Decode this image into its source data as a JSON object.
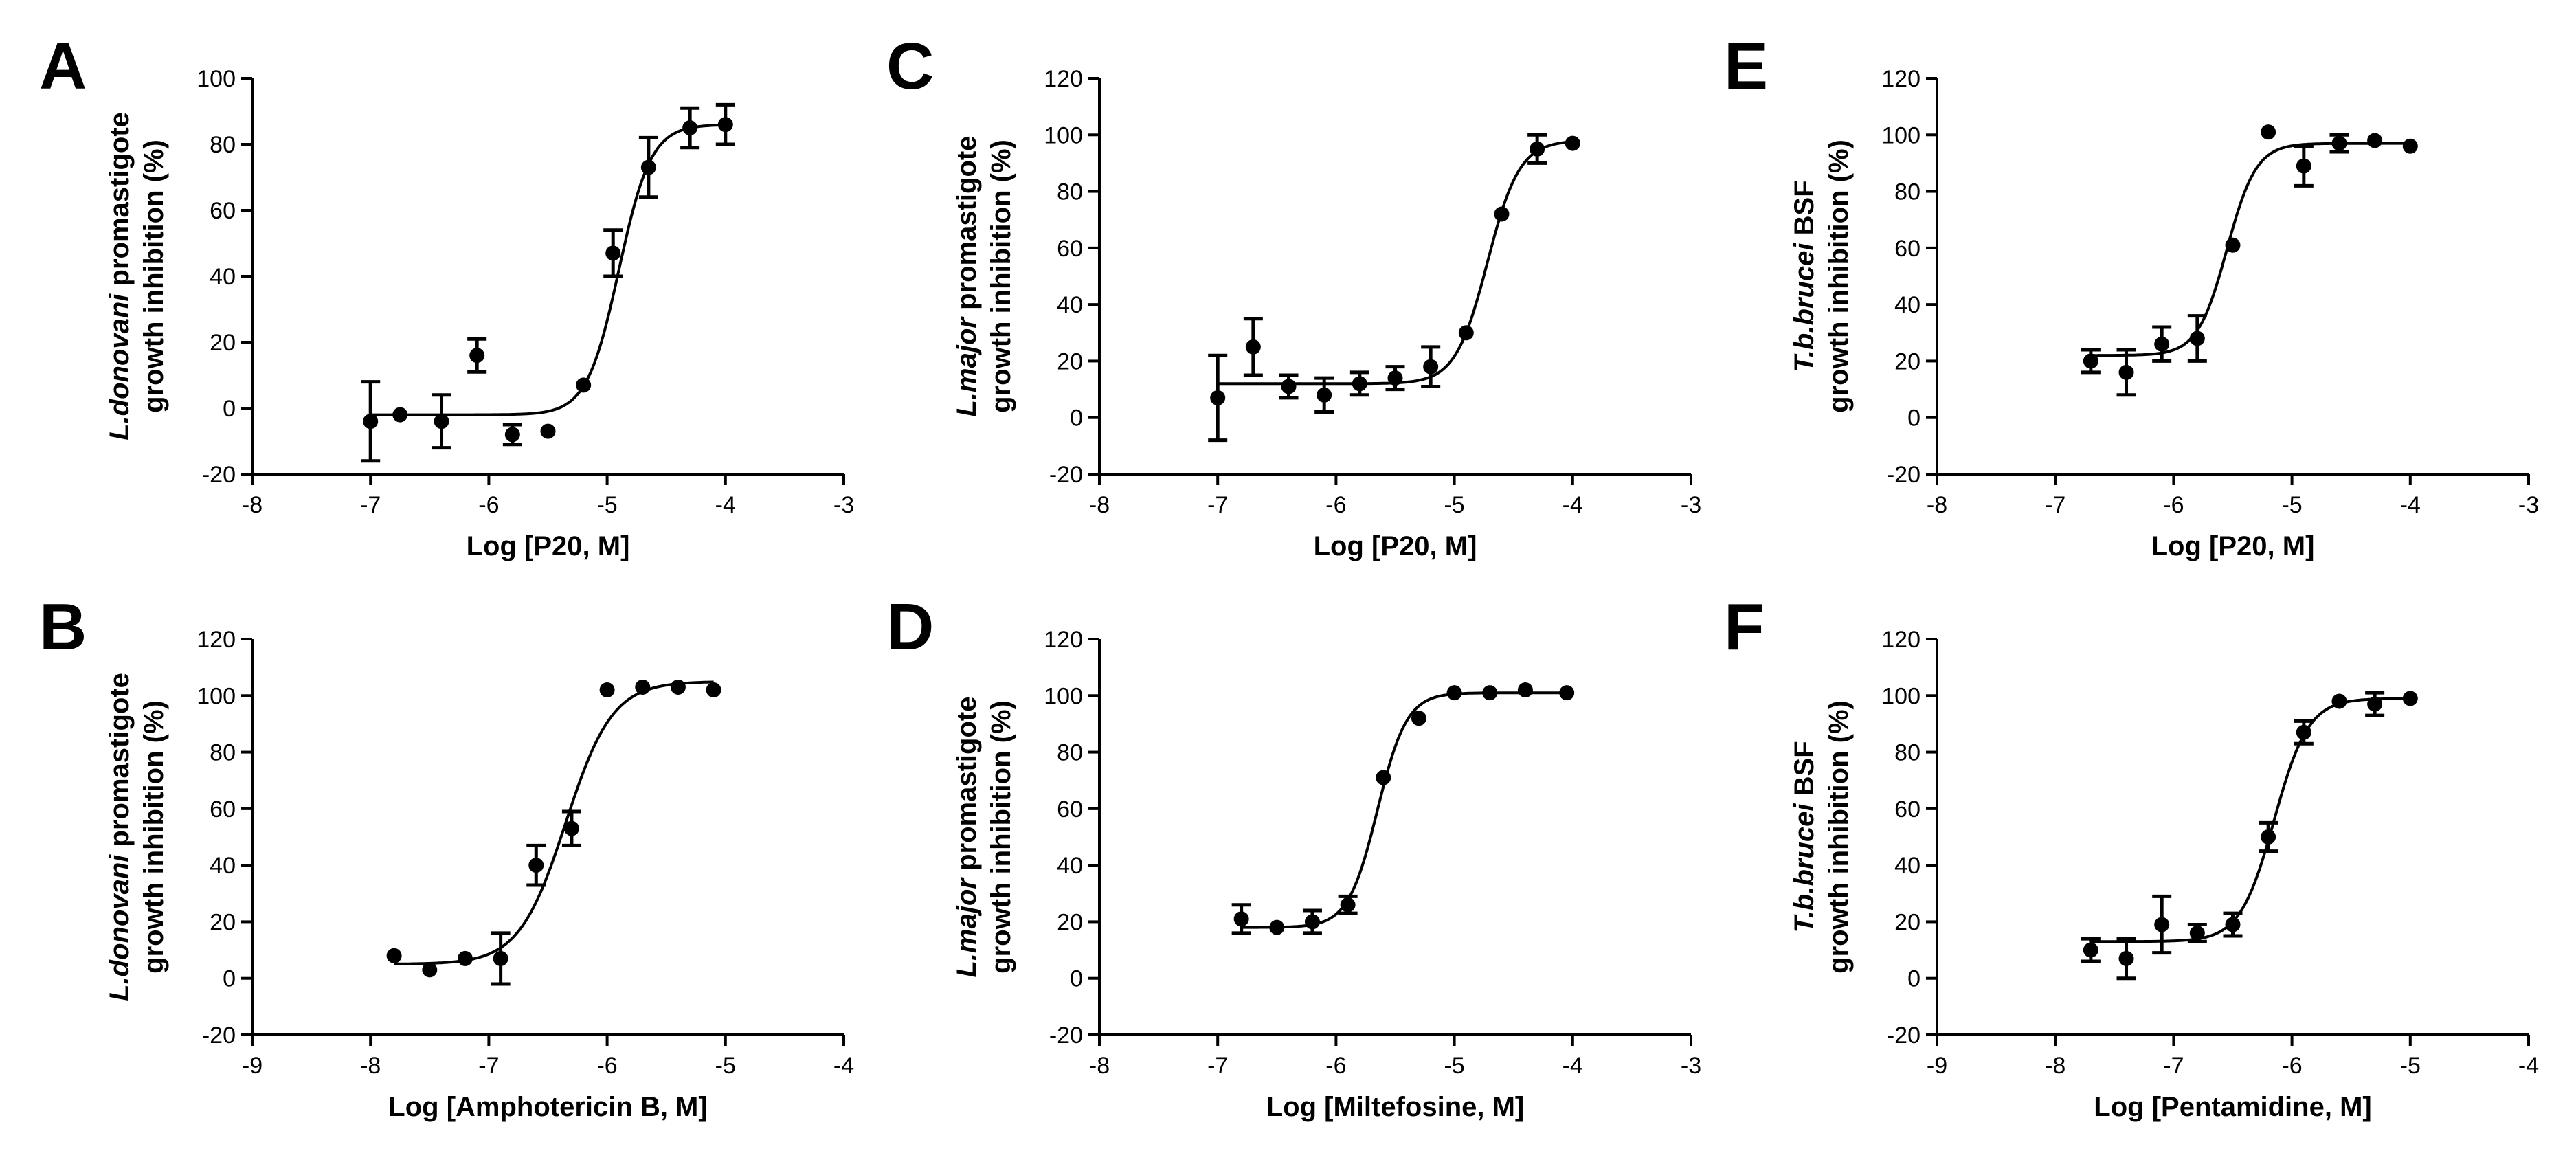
{
  "chart_data": [
    {
      "panel": "A",
      "type": "scatter",
      "ylabel_italic": "L.donovani",
      "ylabel_rest": " promastigote",
      "ylabel_line2": "growth inhibition (%)",
      "xlabel": "Log [P20, M]",
      "xlim": [
        -8,
        -3
      ],
      "ylim": [
        -20,
        100
      ],
      "xticks": [
        -8,
        -7,
        -6,
        -5,
        -4,
        -3
      ],
      "yticks": [
        -20,
        0,
        20,
        40,
        60,
        80,
        100
      ],
      "points": [
        {
          "x": -7.0,
          "y": -4,
          "err": 12
        },
        {
          "x": -6.75,
          "y": -2,
          "err": 0
        },
        {
          "x": -6.4,
          "y": -4,
          "err": 8
        },
        {
          "x": -6.1,
          "y": 16,
          "err": 5
        },
        {
          "x": -5.8,
          "y": -8,
          "err": 3
        },
        {
          "x": -5.5,
          "y": -7,
          "err": 0
        },
        {
          "x": -5.2,
          "y": 7,
          "err": 0
        },
        {
          "x": -4.95,
          "y": 47,
          "err": 7
        },
        {
          "x": -4.65,
          "y": 73,
          "err": 9
        },
        {
          "x": -4.3,
          "y": 85,
          "err": 6
        },
        {
          "x": -4.0,
          "y": 86,
          "err": 6
        }
      ],
      "fit": {
        "bottom": -2,
        "top": 86,
        "logec50": -4.9,
        "hill": 3.2
      }
    },
    {
      "panel": "B",
      "type": "scatter",
      "ylabel_italic": "L.donovani",
      "ylabel_rest": " promastigote",
      "ylabel_line2": "growth inhibition (%)",
      "xlabel": "Log [Amphotericin B, M]",
      "xlim": [
        -9,
        -4
      ],
      "ylim": [
        -20,
        120
      ],
      "xticks": [
        -9,
        -8,
        -7,
        -6,
        -5,
        -4
      ],
      "yticks": [
        -20,
        0,
        20,
        40,
        60,
        80,
        100,
        120
      ],
      "points": [
        {
          "x": -7.8,
          "y": 8,
          "err": 0
        },
        {
          "x": -7.5,
          "y": 3,
          "err": 0
        },
        {
          "x": -7.2,
          "y": 7,
          "err": 0
        },
        {
          "x": -6.9,
          "y": 7,
          "err": 9
        },
        {
          "x": -6.6,
          "y": 40,
          "err": 7
        },
        {
          "x": -6.3,
          "y": 53,
          "err": 6
        },
        {
          "x": -6.0,
          "y": 102,
          "err": 0
        },
        {
          "x": -5.7,
          "y": 103,
          "err": 0
        },
        {
          "x": -5.4,
          "y": 103,
          "err": 0
        },
        {
          "x": -5.1,
          "y": 102,
          "err": 0
        }
      ],
      "fit": {
        "bottom": 5,
        "top": 105,
        "logec50": -6.35,
        "hill": 2.2
      }
    },
    {
      "panel": "C",
      "type": "scatter",
      "ylabel_italic": "L.major",
      "ylabel_rest": " promastigote",
      "ylabel_line2": "growth inhibition (%)",
      "xlabel": "Log [P20, M]",
      "xlim": [
        -8,
        -3
      ],
      "ylim": [
        -20,
        120
      ],
      "xticks": [
        -8,
        -7,
        -6,
        -5,
        -4,
        -3
      ],
      "yticks": [
        -20,
        0,
        20,
        40,
        60,
        80,
        100,
        120
      ],
      "points": [
        {
          "x": -7.0,
          "y": 7,
          "err": 15
        },
        {
          "x": -6.7,
          "y": 25,
          "err": 10
        },
        {
          "x": -6.4,
          "y": 11,
          "err": 4
        },
        {
          "x": -6.1,
          "y": 8,
          "err": 6
        },
        {
          "x": -5.8,
          "y": 12,
          "err": 4
        },
        {
          "x": -5.5,
          "y": 14,
          "err": 4
        },
        {
          "x": -5.2,
          "y": 18,
          "err": 7
        },
        {
          "x": -4.9,
          "y": 30,
          "err": 0
        },
        {
          "x": -4.6,
          "y": 72,
          "err": 0
        },
        {
          "x": -4.3,
          "y": 95,
          "err": 5
        },
        {
          "x": -4.0,
          "y": 97,
          "err": 0
        }
      ],
      "fit": {
        "bottom": 12,
        "top": 98,
        "logec50": -4.72,
        "hill": 3.2
      }
    },
    {
      "panel": "D",
      "type": "scatter",
      "ylabel_italic": "L.major",
      "ylabel_rest": " promastigote",
      "ylabel_line2": "growth inhibition (%)",
      "xlabel": "Log [Miltefosine, M]",
      "xlim": [
        -8,
        -3
      ],
      "ylim": [
        -20,
        120
      ],
      "xticks": [
        -8,
        -7,
        -6,
        -5,
        -4,
        -3
      ],
      "yticks": [
        -20,
        0,
        20,
        40,
        60,
        80,
        100,
        120
      ],
      "points": [
        {
          "x": -6.8,
          "y": 21,
          "err": 5
        },
        {
          "x": -6.5,
          "y": 18,
          "err": 0
        },
        {
          "x": -6.2,
          "y": 20,
          "err": 4
        },
        {
          "x": -5.9,
          "y": 26,
          "err": 3
        },
        {
          "x": -5.6,
          "y": 71,
          "err": 0
        },
        {
          "x": -5.3,
          "y": 92,
          "err": 0
        },
        {
          "x": -5.0,
          "y": 101,
          "err": 0
        },
        {
          "x": -4.7,
          "y": 101,
          "err": 0
        },
        {
          "x": -4.4,
          "y": 102,
          "err": 0
        },
        {
          "x": -4.05,
          "y": 101,
          "err": 0
        }
      ],
      "fit": {
        "bottom": 18,
        "top": 101,
        "logec50": -5.65,
        "hill": 3.5
      }
    },
    {
      "panel": "E",
      "type": "scatter",
      "ylabel_italic": "T.b.brucei",
      "ylabel_rest": " BSF",
      "ylabel_line2": "growth inhibition (%)",
      "xlabel": "Log [P20, M]",
      "xlim": [
        -8,
        -3
      ],
      "ylim": [
        -20,
        120
      ],
      "xticks": [
        -8,
        -7,
        -6,
        -5,
        -4,
        -3
      ],
      "yticks": [
        -20,
        0,
        20,
        40,
        60,
        80,
        100,
        120
      ],
      "points": [
        {
          "x": -6.7,
          "y": 20,
          "err": 4
        },
        {
          "x": -6.4,
          "y": 16,
          "err": 8
        },
        {
          "x": -6.1,
          "y": 26,
          "err": 6
        },
        {
          "x": -5.8,
          "y": 28,
          "err": 8
        },
        {
          "x": -5.5,
          "y": 61,
          "err": 0
        },
        {
          "x": -5.2,
          "y": 101,
          "err": 0
        },
        {
          "x": -4.9,
          "y": 89,
          "err": 7
        },
        {
          "x": -4.6,
          "y": 97,
          "err": 3
        },
        {
          "x": -4.3,
          "y": 98,
          "err": 0
        },
        {
          "x": -4.0,
          "y": 96,
          "err": 0
        }
      ],
      "fit": {
        "bottom": 22,
        "top": 97,
        "logec50": -5.55,
        "hill": 3.5
      }
    },
    {
      "panel": "F",
      "type": "scatter",
      "ylabel_italic": "T.b.brucei",
      "ylabel_rest": " BSF",
      "ylabel_line2": "growth inhibition (%)",
      "xlabel": "Log [Pentamidine, M]",
      "xlim": [
        -9,
        -4
      ],
      "ylim": [
        -20,
        120
      ],
      "xticks": [
        -9,
        -8,
        -7,
        -6,
        -5,
        -4
      ],
      "yticks": [
        -20,
        0,
        20,
        40,
        60,
        80,
        100,
        120
      ],
      "points": [
        {
          "x": -7.7,
          "y": 10,
          "err": 4
        },
        {
          "x": -7.4,
          "y": 7,
          "err": 7
        },
        {
          "x": -7.1,
          "y": 19,
          "err": 10
        },
        {
          "x": -6.8,
          "y": 16,
          "err": 3
        },
        {
          "x": -6.5,
          "y": 19,
          "err": 4
        },
        {
          "x": -6.2,
          "y": 50,
          "err": 5
        },
        {
          "x": -5.9,
          "y": 87,
          "err": 4
        },
        {
          "x": -5.6,
          "y": 98,
          "err": 0
        },
        {
          "x": -5.3,
          "y": 97,
          "err": 4
        },
        {
          "x": -5.0,
          "y": 99,
          "err": 0
        }
      ],
      "fit": {
        "bottom": 13,
        "top": 99,
        "logec50": -6.15,
        "hill": 3.0
      }
    }
  ]
}
